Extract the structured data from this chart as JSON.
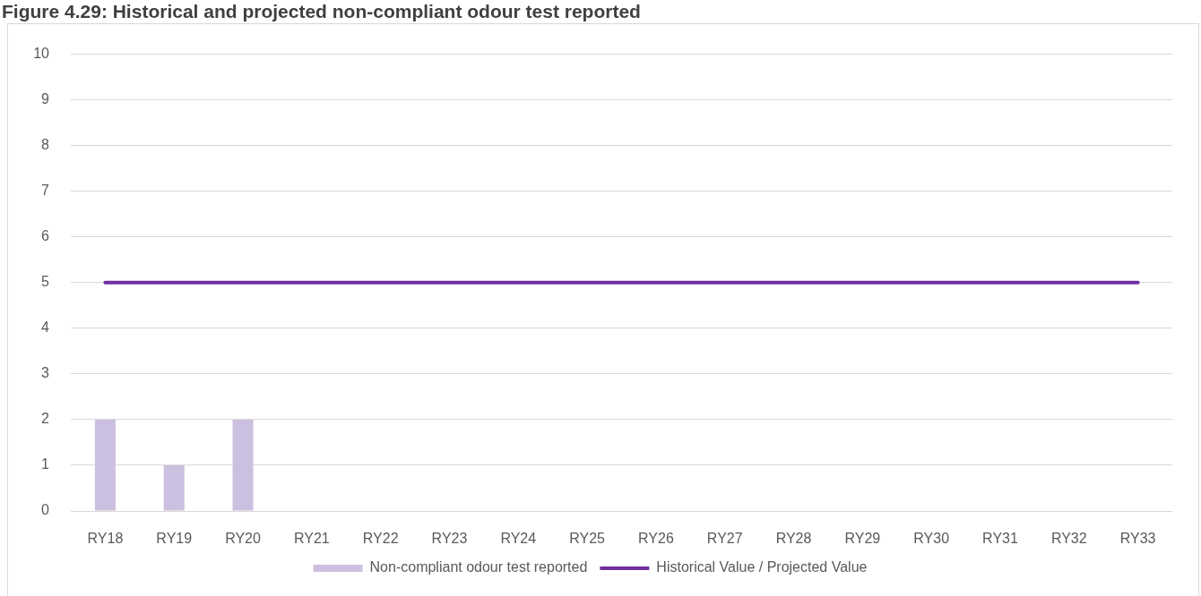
{
  "chart_data": {
    "type": "bar",
    "title": "Figure 4.29: Historical and projected non-compliant odour test reported",
    "categories": [
      "RY18",
      "RY19",
      "RY20",
      "RY21",
      "RY22",
      "RY23",
      "RY24",
      "RY25",
      "RY26",
      "RY27",
      "RY28",
      "RY29",
      "RY30",
      "RY31",
      "RY32",
      "RY33"
    ],
    "series": [
      {
        "name": "Non-compliant odour test reported",
        "color": "#ccc0e0",
        "values": [
          2,
          1,
          2,
          null,
          null,
          null,
          null,
          null,
          null,
          null,
          null,
          null,
          null,
          null,
          null,
          null
        ]
      },
      {
        "name": "Historical Value / Projected Value",
        "type": "line",
        "color": "#7030a0",
        "values": [
          5,
          5,
          5,
          5,
          5,
          5,
          5,
          5,
          5,
          5,
          5,
          5,
          5,
          5,
          5,
          5
        ]
      }
    ],
    "ylim": [
      0,
      10
    ],
    "yticks": [
      0,
      1,
      2,
      3,
      4,
      5,
      6,
      7,
      8,
      9,
      10
    ],
    "grid": "y",
    "legend": "bottom",
    "marker": "none",
    "line_style": "solid"
  }
}
